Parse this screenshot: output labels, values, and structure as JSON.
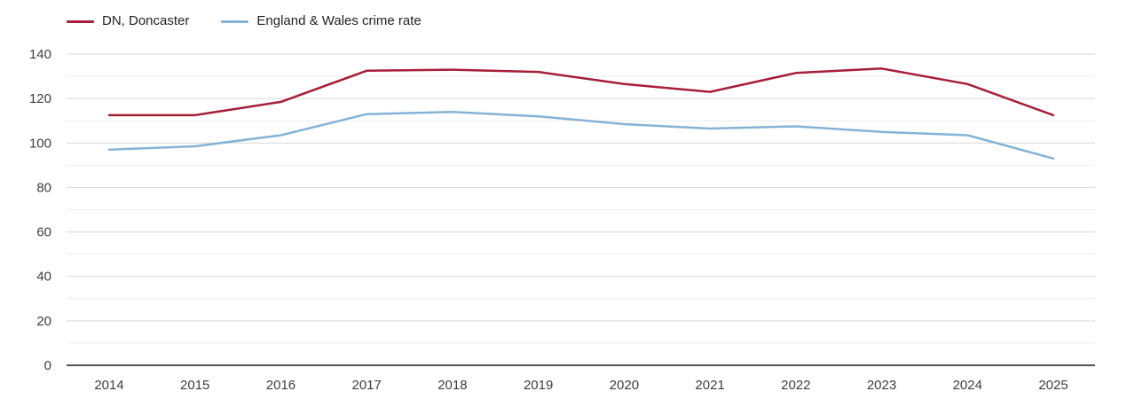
{
  "chart_data": {
    "type": "line",
    "title": "",
    "xlabel": "",
    "ylabel": "",
    "x": [
      2014,
      2015,
      2016,
      2017,
      2018,
      2019,
      2020,
      2021,
      2022,
      2023,
      2024,
      2025
    ],
    "series": [
      {
        "name": "DN, Doncaster",
        "color": "#a61e38",
        "values": [
          112.5,
          112.5,
          118.5,
          132.5,
          133,
          132,
          126.5,
          123,
          131.5,
          133.5,
          126.5,
          112.5
        ]
      },
      {
        "name": "England & Wales crime rate",
        "color": "#85b3d5",
        "values": [
          97,
          98.5,
          103.5,
          113,
          114,
          112,
          108.5,
          106.5,
          107.5,
          105,
          103.5,
          93
        ]
      }
    ],
    "ylim": [
      0,
      140
    ],
    "ytick_labels": [
      0,
      20,
      40,
      60,
      80,
      100,
      120,
      140
    ],
    "ytick_major_step": 20,
    "ytick_minor_step": 10,
    "grid": "horizontal",
    "legend_position": "top-left"
  },
  "colors": {
    "grid_minor": "#ececec",
    "grid_major": "#d7d7d7",
    "axis_line": "#1c1c1c",
    "tick_text": "#3d3d3d"
  }
}
